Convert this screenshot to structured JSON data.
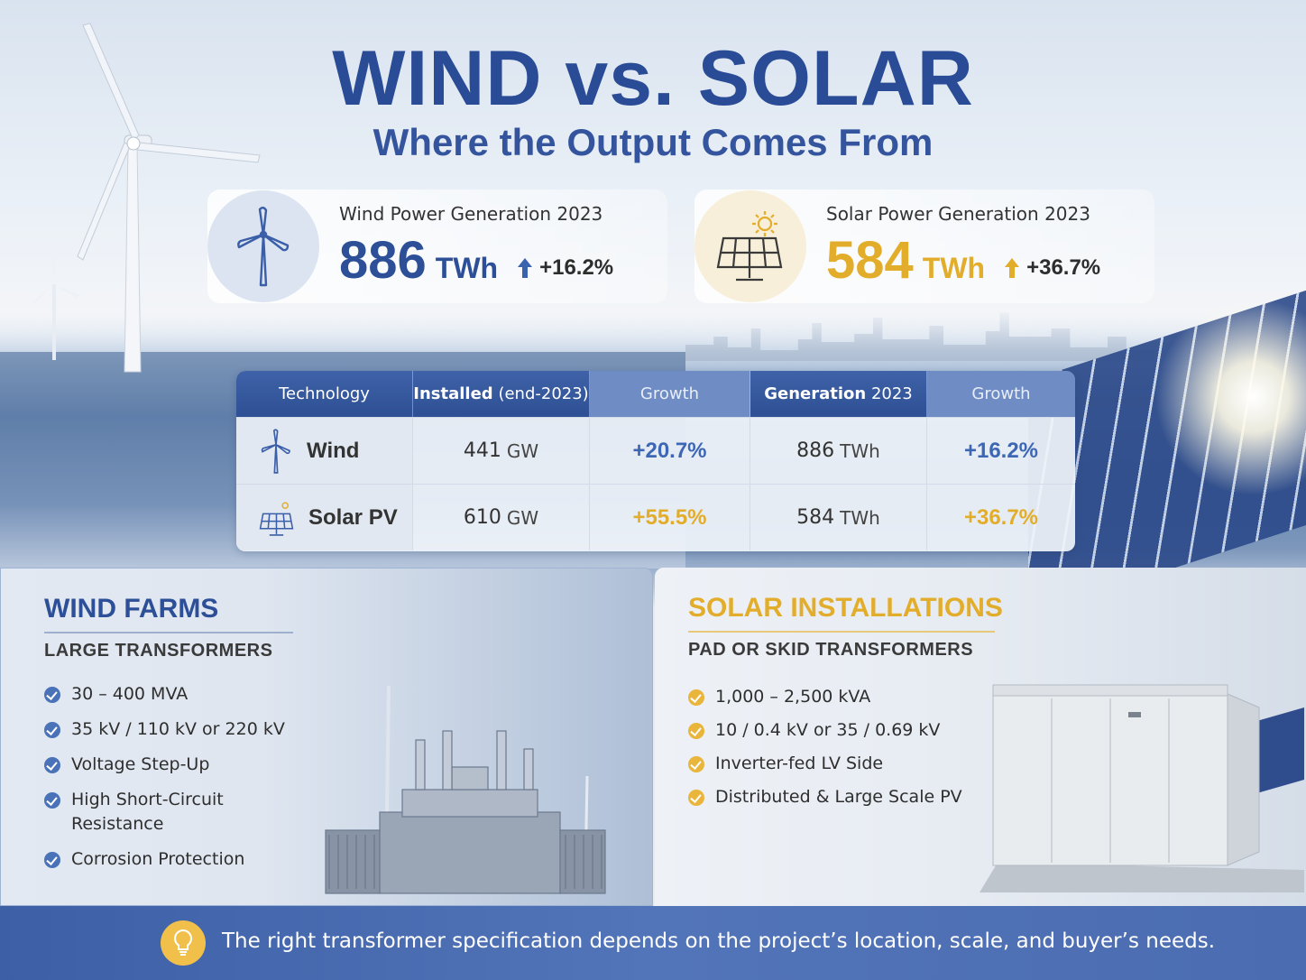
{
  "title": "WIND vs. SOLAR",
  "subtitle": "Where the Output Comes From",
  "wind_stat": {
    "label": "Wind Power Generation 2023",
    "value": "886",
    "unit": "TWh",
    "change": "+16.2%",
    "icon": "wind-turbine-icon",
    "color": "#2c4f98"
  },
  "solar_stat": {
    "label": "Solar Power Generation 2023",
    "value": "584",
    "unit": "TWh",
    "change": "+36.7%",
    "icon": "solar-panel-icon",
    "color": "#e3ad2c"
  },
  "table": {
    "headers": {
      "technology": "Technology",
      "installed_bold": "Installed",
      "installed_rest": "(end-2023)",
      "growth1": "Growth",
      "generation_bold": "Generation",
      "generation_rest": "2023",
      "growth2": "Growth"
    },
    "rows": [
      {
        "tech": "Wind",
        "installed": "441",
        "installed_unit": "GW",
        "installed_growth": "+20.7%",
        "generation": "886",
        "generation_unit": "TWh",
        "generation_growth": "+16.2%"
      },
      {
        "tech": "Solar PV",
        "installed": "610",
        "installed_unit": "GW",
        "installed_growth": "+55.5%",
        "generation": "584",
        "generation_unit": "TWh",
        "generation_growth": "+36.7%"
      }
    ]
  },
  "wind_panel": {
    "heading": "WIND FARMS",
    "subheading": "LARGE TRANSFORMERS",
    "items": [
      "30 – 400 MVA",
      "35 kV / 110 kV or 220 kV",
      "Voltage Step-Up",
      "High Short-Circuit Resistance",
      "Corrosion Protection"
    ]
  },
  "solar_panel": {
    "heading": "SOLAR INSTALLATIONS",
    "subheading": "PAD OR SKID TRANSFORMERS",
    "items": [
      "1,000 – 2,500 kVA",
      "10 / 0.4 kV or 35 / 0.69 kV",
      "Inverter-fed LV Side",
      "Distributed & Large Scale PV"
    ]
  },
  "footer": {
    "icon": "lightbulb-icon",
    "text": "The right transformer specification depends on the project’s location, scale, and buyer’s needs."
  }
}
